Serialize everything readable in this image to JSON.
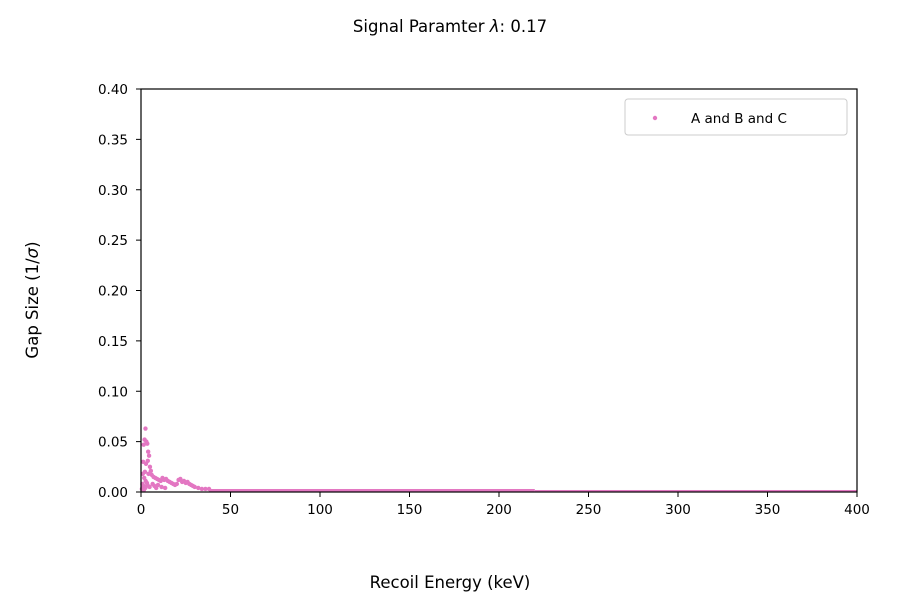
{
  "chart_data": {
    "type": "scatter",
    "title_prefix": "Signal Paramter ",
    "title_symbol": "λ",
    "title_suffix": ":  0.17",
    "xlabel": "Recoil Energy (keV)",
    "ylabel_prefix": "Gap Size (1/",
    "ylabel_symbol": "σ",
    "ylabel_suffix": ")",
    "xlim": [
      0,
      400
    ],
    "ylim": [
      0,
      0.4
    ],
    "x_ticks": [
      0,
      50,
      100,
      150,
      200,
      250,
      300,
      350,
      400
    ],
    "x_tick_labels": [
      "0",
      "50",
      "100",
      "150",
      "200",
      "250",
      "300",
      "350",
      "400"
    ],
    "y_ticks": [
      0,
      0.05,
      0.1,
      0.15,
      0.2,
      0.25,
      0.3,
      0.35,
      0.4
    ],
    "y_tick_labels": [
      "0.00",
      "0.05",
      "0.10",
      "0.15",
      "0.20",
      "0.25",
      "0.30",
      "0.35",
      "0.40"
    ],
    "grid": false,
    "legend_position": "upper right",
    "series": [
      {
        "name": "A and B and C",
        "color": "#e377c2",
        "points": [
          [
            2.5,
            0.063
          ],
          [
            2.0,
            0.052
          ],
          [
            3.0,
            0.05
          ],
          [
            1.5,
            0.047
          ],
          [
            3.5,
            0.048
          ],
          [
            4.0,
            0.04
          ],
          [
            4.5,
            0.036
          ],
          [
            3.8,
            0.031
          ],
          [
            2.8,
            0.028
          ],
          [
            1.2,
            0.03
          ],
          [
            5.0,
            0.025
          ],
          [
            5.5,
            0.021
          ],
          [
            4.2,
            0.018
          ],
          [
            2.2,
            0.02
          ],
          [
            6.0,
            0.017
          ],
          [
            7.0,
            0.015
          ],
          [
            8.0,
            0.014
          ],
          [
            9.0,
            0.013
          ],
          [
            10.0,
            0.012
          ],
          [
            11.0,
            0.011
          ],
          [
            12.0,
            0.014
          ],
          [
            13.0,
            0.012
          ],
          [
            14.0,
            0.013
          ],
          [
            15.0,
            0.011
          ],
          [
            16.0,
            0.01
          ],
          [
            17.0,
            0.009
          ],
          [
            18.0,
            0.008
          ],
          [
            19.0,
            0.007
          ],
          [
            20.0,
            0.008
          ],
          [
            21.0,
            0.012
          ],
          [
            22.0,
            0.013
          ],
          [
            23.0,
            0.01
          ],
          [
            24.0,
            0.011
          ],
          [
            25.0,
            0.009
          ],
          [
            26.0,
            0.01
          ],
          [
            27.0,
            0.008
          ],
          [
            28.0,
            0.007
          ],
          [
            29.0,
            0.006
          ],
          [
            30.0,
            0.005
          ],
          [
            32.0,
            0.004
          ],
          [
            34.0,
            0.003
          ],
          [
            36.0,
            0.003
          ],
          [
            38.0,
            0.003
          ],
          [
            1.0,
            0.018
          ],
          [
            1.8,
            0.014
          ],
          [
            2.6,
            0.011
          ],
          [
            3.3,
            0.009
          ],
          [
            0.8,
            0.008
          ],
          [
            1.4,
            0.006
          ],
          [
            2.4,
            0.004
          ],
          [
            3.6,
            0.007
          ],
          [
            4.8,
            0.005
          ],
          [
            6.5,
            0.008
          ],
          [
            7.5,
            0.006
          ],
          [
            8.5,
            0.004
          ],
          [
            9.5,
            0.007
          ],
          [
            11.5,
            0.005
          ],
          [
            13.5,
            0.004
          ],
          [
            0.5,
            0.003
          ],
          [
            1.6,
            0.002
          ]
        ],
        "baseline_bands": [
          {
            "x_start": 38,
            "x_end": 220,
            "y": 0.0015
          },
          {
            "x_start": 220,
            "x_end": 400,
            "y": 0.0005
          }
        ]
      }
    ]
  }
}
